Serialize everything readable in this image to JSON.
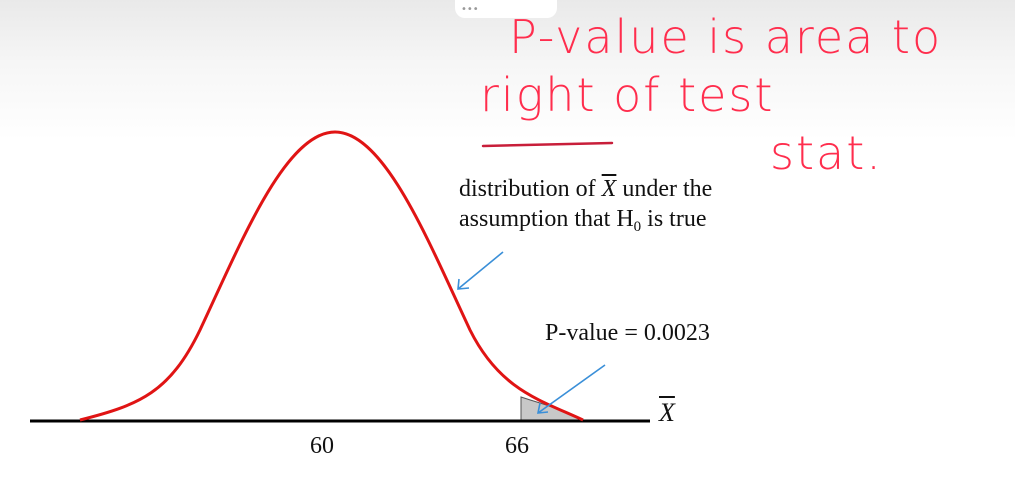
{
  "labels": {
    "distribution_line1_a": "distribution of ",
    "distribution_symbol": "X",
    "distribution_line1_b": " under the",
    "distribution_line2_a": "assumption that H",
    "distribution_subscript": "0",
    "distribution_line2_b": " is true",
    "p_value": "P-value = 0.0023",
    "tick_60": "60",
    "tick_66": "66",
    "axis_variable": "X"
  },
  "handwriting": {
    "line1": "P-value is area to",
    "line2": "right  of test",
    "line3": "stat."
  },
  "colors": {
    "curve": "#e01414",
    "handwriting": "#ff2d4d",
    "pointer_arrow": "#3a8fd8",
    "shaded_tail": "#c8c8c8",
    "axis": "#000000"
  }
}
